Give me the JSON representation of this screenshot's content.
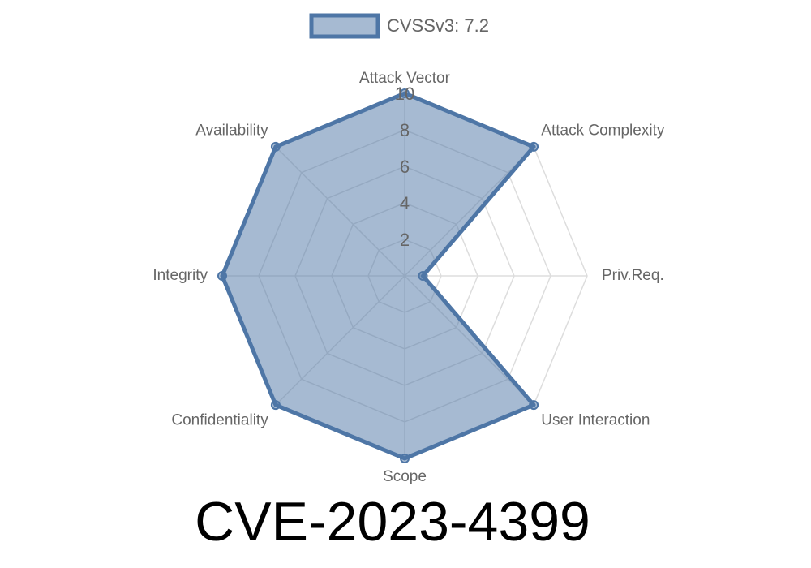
{
  "chart_data": {
    "type": "radar",
    "title": "CVE-2023-4399",
    "categories": [
      "Attack Vector",
      "Attack Complexity",
      "Priv.Req.",
      "User Interaction",
      "Scope",
      "Confidentiality",
      "Integrity",
      "Availability"
    ],
    "series": [
      {
        "name": "CVSSv3: 7.2",
        "color": "#4e76a6",
        "values": [
          10,
          10,
          1,
          10,
          10,
          10,
          10,
          10
        ]
      }
    ],
    "ylim": [
      0,
      10
    ],
    "yticks": [
      2,
      4,
      6,
      8,
      10
    ],
    "grid": true,
    "legend": "top"
  }
}
